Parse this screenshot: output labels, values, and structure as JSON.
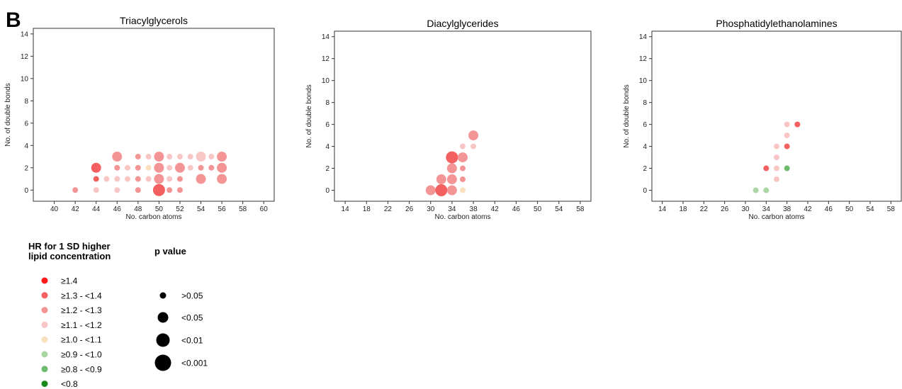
{
  "panel_letter": "B",
  "chart_data": [
    {
      "type": "scatter",
      "title": "Triacylglycerols",
      "xlabel": "No. carbon atoms",
      "ylabel": "No. of double bonds",
      "xlim": [
        38,
        61
      ],
      "ylim": [
        -1,
        14.5
      ],
      "xticks": [
        40,
        42,
        44,
        46,
        48,
        50,
        52,
        54,
        56,
        58,
        60
      ],
      "yticks": [
        0,
        2,
        4,
        6,
        8,
        10,
        12,
        14
      ],
      "points": [
        {
          "x": 42,
          "y": 0,
          "hr": "1.2-1.3",
          "p": ">0.05"
        },
        {
          "x": 44,
          "y": 0,
          "hr": "1.1-1.2",
          "p": ">0.05"
        },
        {
          "x": 44,
          "y": 1,
          "hr": "1.3-1.4",
          "p": ">0.05"
        },
        {
          "x": 44,
          "y": 2,
          "hr": "1.3-1.4",
          "p": "<0.01"
        },
        {
          "x": 45,
          "y": 1,
          "hr": "1.1-1.2",
          "p": ">0.05"
        },
        {
          "x": 46,
          "y": 0,
          "hr": "1.1-1.2",
          "p": ">0.05"
        },
        {
          "x": 46,
          "y": 1,
          "hr": "1.1-1.2",
          "p": ">0.05"
        },
        {
          "x": 46,
          "y": 2,
          "hr": "1.2-1.3",
          "p": ">0.05"
        },
        {
          "x": 46,
          "y": 3,
          "hr": "1.2-1.3",
          "p": "<0.01"
        },
        {
          "x": 47,
          "y": 1,
          "hr": "1.1-1.2",
          "p": ">0.05"
        },
        {
          "x": 47,
          "y": 2,
          "hr": "1.1-1.2",
          "p": ">0.05"
        },
        {
          "x": 48,
          "y": 0,
          "hr": "1.2-1.3",
          "p": ">0.05"
        },
        {
          "x": 48,
          "y": 1,
          "hr": "1.2-1.3",
          "p": ">0.05"
        },
        {
          "x": 48,
          "y": 2,
          "hr": "1.2-1.3",
          "p": ">0.05"
        },
        {
          "x": 48,
          "y": 3,
          "hr": "1.2-1.3",
          "p": ">0.05"
        },
        {
          "x": 49,
          "y": 1,
          "hr": "1.1-1.2",
          "p": ">0.05"
        },
        {
          "x": 49,
          "y": 2,
          "hr": "1.0-1.1",
          "p": ">0.05"
        },
        {
          "x": 49,
          "y": 3,
          "hr": "1.1-1.2",
          "p": ">0.05"
        },
        {
          "x": 50,
          "y": 0,
          "hr": "1.3-1.4",
          "p": "<0.001"
        },
        {
          "x": 50,
          "y": 1,
          "hr": "1.2-1.3",
          "p": "<0.01"
        },
        {
          "x": 50,
          "y": 2,
          "hr": "1.2-1.3",
          "p": "<0.01"
        },
        {
          "x": 50,
          "y": 3,
          "hr": "1.2-1.3",
          "p": "<0.01"
        },
        {
          "x": 51,
          "y": 0,
          "hr": "1.2-1.3",
          "p": ">0.05"
        },
        {
          "x": 51,
          "y": 1,
          "hr": "1.1-1.2",
          "p": ">0.05"
        },
        {
          "x": 51,
          "y": 2,
          "hr": "1.1-1.2",
          "p": ">0.05"
        },
        {
          "x": 51,
          "y": 3,
          "hr": "1.1-1.2",
          "p": ">0.05"
        },
        {
          "x": 52,
          "y": 0,
          "hr": "1.2-1.3",
          "p": ">0.05"
        },
        {
          "x": 52,
          "y": 1,
          "hr": "1.2-1.3",
          "p": ">0.05"
        },
        {
          "x": 52,
          "y": 2,
          "hr": "1.2-1.3",
          "p": "<0.01"
        },
        {
          "x": 52,
          "y": 3,
          "hr": "1.1-1.2",
          "p": ">0.05"
        },
        {
          "x": 53,
          "y": 2,
          "hr": "1.1-1.2",
          "p": ">0.05"
        },
        {
          "x": 53,
          "y": 3,
          "hr": "1.1-1.2",
          "p": ">0.05"
        },
        {
          "x": 54,
          "y": 1,
          "hr": "1.2-1.3",
          "p": "<0.01"
        },
        {
          "x": 54,
          "y": 2,
          "hr": "1.2-1.3",
          "p": ">0.05"
        },
        {
          "x": 54,
          "y": 3,
          "hr": "1.1-1.2",
          "p": "<0.01"
        },
        {
          "x": 55,
          "y": 2,
          "hr": "1.2-1.3",
          "p": ">0.05"
        },
        {
          "x": 55,
          "y": 3,
          "hr": "1.1-1.2",
          "p": ">0.05"
        },
        {
          "x": 56,
          "y": 1,
          "hr": "1.2-1.3",
          "p": "<0.01"
        },
        {
          "x": 56,
          "y": 2,
          "hr": "1.2-1.3",
          "p": "<0.01"
        },
        {
          "x": 56,
          "y": 3,
          "hr": "1.2-1.3",
          "p": "<0.01"
        }
      ]
    },
    {
      "type": "scatter",
      "title": "Diacylglycerides",
      "xlabel": "No. carbon atoms",
      "ylabel": "No. of double bonds",
      "xlim": [
        12,
        60
      ],
      "ylim": [
        -1,
        14.5
      ],
      "xticks": [
        14,
        18,
        22,
        26,
        30,
        34,
        38,
        42,
        46,
        50,
        54,
        58
      ],
      "yticks": [
        0,
        2,
        4,
        6,
        8,
        10,
        12,
        14
      ],
      "points": [
        {
          "x": 30,
          "y": 0,
          "hr": "1.2-1.3",
          "p": "<0.01"
        },
        {
          "x": 32,
          "y": 0,
          "hr": "1.3-1.4",
          "p": "<0.001"
        },
        {
          "x": 32,
          "y": 1,
          "hr": "1.2-1.3",
          "p": "<0.01"
        },
        {
          "x": 34,
          "y": 0,
          "hr": "1.2-1.3",
          "p": "<0.01"
        },
        {
          "x": 34,
          "y": 1,
          "hr": "1.2-1.3",
          "p": "<0.01"
        },
        {
          "x": 34,
          "y": 2,
          "hr": "1.2-1.3",
          "p": "<0.01"
        },
        {
          "x": 34,
          "y": 3,
          "hr": "1.3-1.4",
          "p": "<0.001"
        },
        {
          "x": 36,
          "y": 0,
          "hr": "1.0-1.1",
          "p": ">0.05"
        },
        {
          "x": 36,
          "y": 1,
          "hr": "1.2-1.3",
          "p": ">0.05"
        },
        {
          "x": 36,
          "y": 2,
          "hr": "1.2-1.3",
          "p": ">0.05"
        },
        {
          "x": 36,
          "y": 3,
          "hr": "1.2-1.3",
          "p": "<0.01"
        },
        {
          "x": 36,
          "y": 4,
          "hr": "1.1-1.2",
          "p": ">0.05"
        },
        {
          "x": 38,
          "y": 4,
          "hr": "1.1-1.2",
          "p": ">0.05"
        },
        {
          "x": 38,
          "y": 5,
          "hr": "1.2-1.3",
          "p": "<0.01"
        }
      ]
    },
    {
      "type": "scatter",
      "title": "Phosphatidylethanolamines",
      "xlabel": "No. carbon atoms",
      "ylabel": "No. of double bonds",
      "xlim": [
        12,
        60
      ],
      "ylim": [
        -1,
        14.5
      ],
      "xticks": [
        14,
        18,
        22,
        26,
        30,
        34,
        38,
        42,
        46,
        50,
        54,
        58
      ],
      "yticks": [
        0,
        2,
        4,
        6,
        8,
        10,
        12,
        14
      ],
      "points": [
        {
          "x": 32,
          "y": 0,
          "hr": "0.9-1.0",
          "p": ">0.05"
        },
        {
          "x": 34,
          "y": 0,
          "hr": "0.9-1.0",
          "p": ">0.05"
        },
        {
          "x": 34,
          "y": 2,
          "hr": "1.3-1.4",
          "p": ">0.05"
        },
        {
          "x": 36,
          "y": 1,
          "hr": "1.1-1.2",
          "p": ">0.05"
        },
        {
          "x": 36,
          "y": 2,
          "hr": "1.1-1.2",
          "p": ">0.05"
        },
        {
          "x": 36,
          "y": 3,
          "hr": "1.1-1.2",
          "p": ">0.05"
        },
        {
          "x": 36,
          "y": 4,
          "hr": "1.1-1.2",
          "p": ">0.05"
        },
        {
          "x": 38,
          "y": 2,
          "hr": "0.8-0.9",
          "p": ">0.05"
        },
        {
          "x": 38,
          "y": 4,
          "hr": "1.3-1.4",
          "p": ">0.05"
        },
        {
          "x": 38,
          "y": 5,
          "hr": "1.1-1.2",
          "p": ">0.05"
        },
        {
          "x": 38,
          "y": 6,
          "hr": "1.1-1.2",
          "p": ">0.05"
        },
        {
          "x": 40,
          "y": 6,
          "hr": "1.3-1.4",
          "p": ">0.05"
        }
      ]
    }
  ],
  "legend_hr": {
    "title_line1": "HR for 1 SD higher",
    "title_line2": "lipid concentration",
    "items": [
      {
        "key": "1.4",
        "label": "≥1.4",
        "color": "#ff1a1a"
      },
      {
        "key": "1.3-1.4",
        "label": "≥1.3 - <1.4",
        "color": "#f45f5f"
      },
      {
        "key": "1.2-1.3",
        "label": "≥1.2 - <1.3",
        "color": "#f49595"
      },
      {
        "key": "1.1-1.2",
        "label": "≥1.1 - <1.2",
        "color": "#f9c6c6"
      },
      {
        "key": "1.0-1.1",
        "label": "≥1.0 - <1.1",
        "color": "#fbe0c0"
      },
      {
        "key": "0.9-1.0",
        "label": "≥0.9 - <1.0",
        "color": "#a9d6a3"
      },
      {
        "key": "0.8-0.9",
        "label": "≥0.8 - <0.9",
        "color": "#6cbb6c"
      },
      {
        "key": "0.8",
        "label": "<0.8",
        "color": "#1b8a1b"
      }
    ]
  },
  "legend_p": {
    "title": "p value",
    "items": [
      {
        "key": ">0.05",
        "label": ">0.05"
      },
      {
        "key": "<0.05",
        "label": "<0.05"
      },
      {
        "key": "<0.01",
        "label": "<0.01"
      },
      {
        "key": "<0.001",
        "label": "<0.001"
      }
    ]
  }
}
